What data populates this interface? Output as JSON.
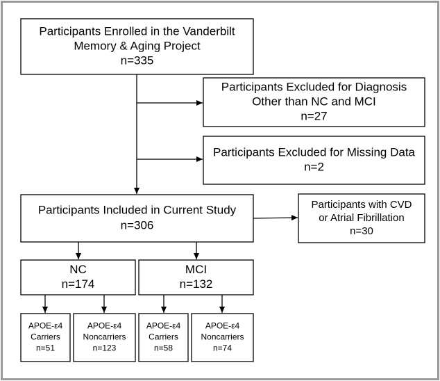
{
  "nodes": [
    {
      "lines": [
        "Participants Enrolled in the Vanderbilt",
        "Memory & Aging Project",
        "n=335"
      ]
    },
    {
      "lines": [
        "Participants Excluded for Diagnosis",
        "Other than NC and MCI",
        "n=27"
      ]
    },
    {
      "lines": [
        "Participants Excluded for Missing Data",
        "n=2"
      ]
    },
    {
      "lines": [
        "Participants Included in Current Study",
        "n=306"
      ]
    },
    {
      "lines": [
        "Participants with CVD",
        "or Atrial Fibrillation",
        "n=30"
      ]
    },
    {
      "lines": [
        "NC",
        "n=174"
      ]
    },
    {
      "lines": [
        "MCI",
        "n=132"
      ]
    },
    {
      "lines": [
        "APOE-ε4",
        "Carriers",
        "n=51"
      ]
    },
    {
      "lines": [
        "APOE-ε4",
        "Noncarriers",
        "n=123"
      ]
    },
    {
      "lines": [
        "APOE-ε4",
        "Carriers",
        "n=58"
      ]
    },
    {
      "lines": [
        "APOE-ε4",
        "Noncarriers",
        "n=74"
      ]
    }
  ]
}
